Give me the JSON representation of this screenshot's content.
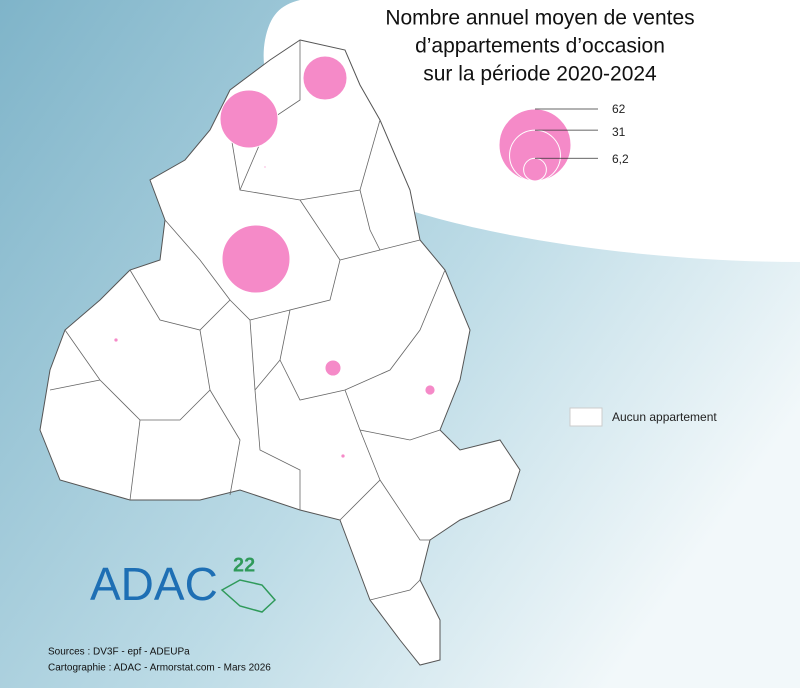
{
  "title": [
    "Nombre annuel moyen de ventes",
    "d’appartements d’occasion",
    "sur la période 2020-2024"
  ],
  "legend": {
    "sizes": {
      "values": [
        62,
        31,
        6.2
      ],
      "value_labels": [
        "62",
        "31",
        "6,2"
      ]
    },
    "none_label": "Aucun appartement"
  },
  "bubbles": {
    "values": [
      55,
      40,
      23,
      3,
      1.2,
      0.2,
      0.2,
      0.05
    ]
  },
  "logo": {
    "text": "ADAC",
    "number": "22"
  },
  "sources": [
    "Sources : DV3F - epf - ADEUPa",
    "Cartographie : ADAC - Armorstat.com - Mars 2026"
  ]
}
